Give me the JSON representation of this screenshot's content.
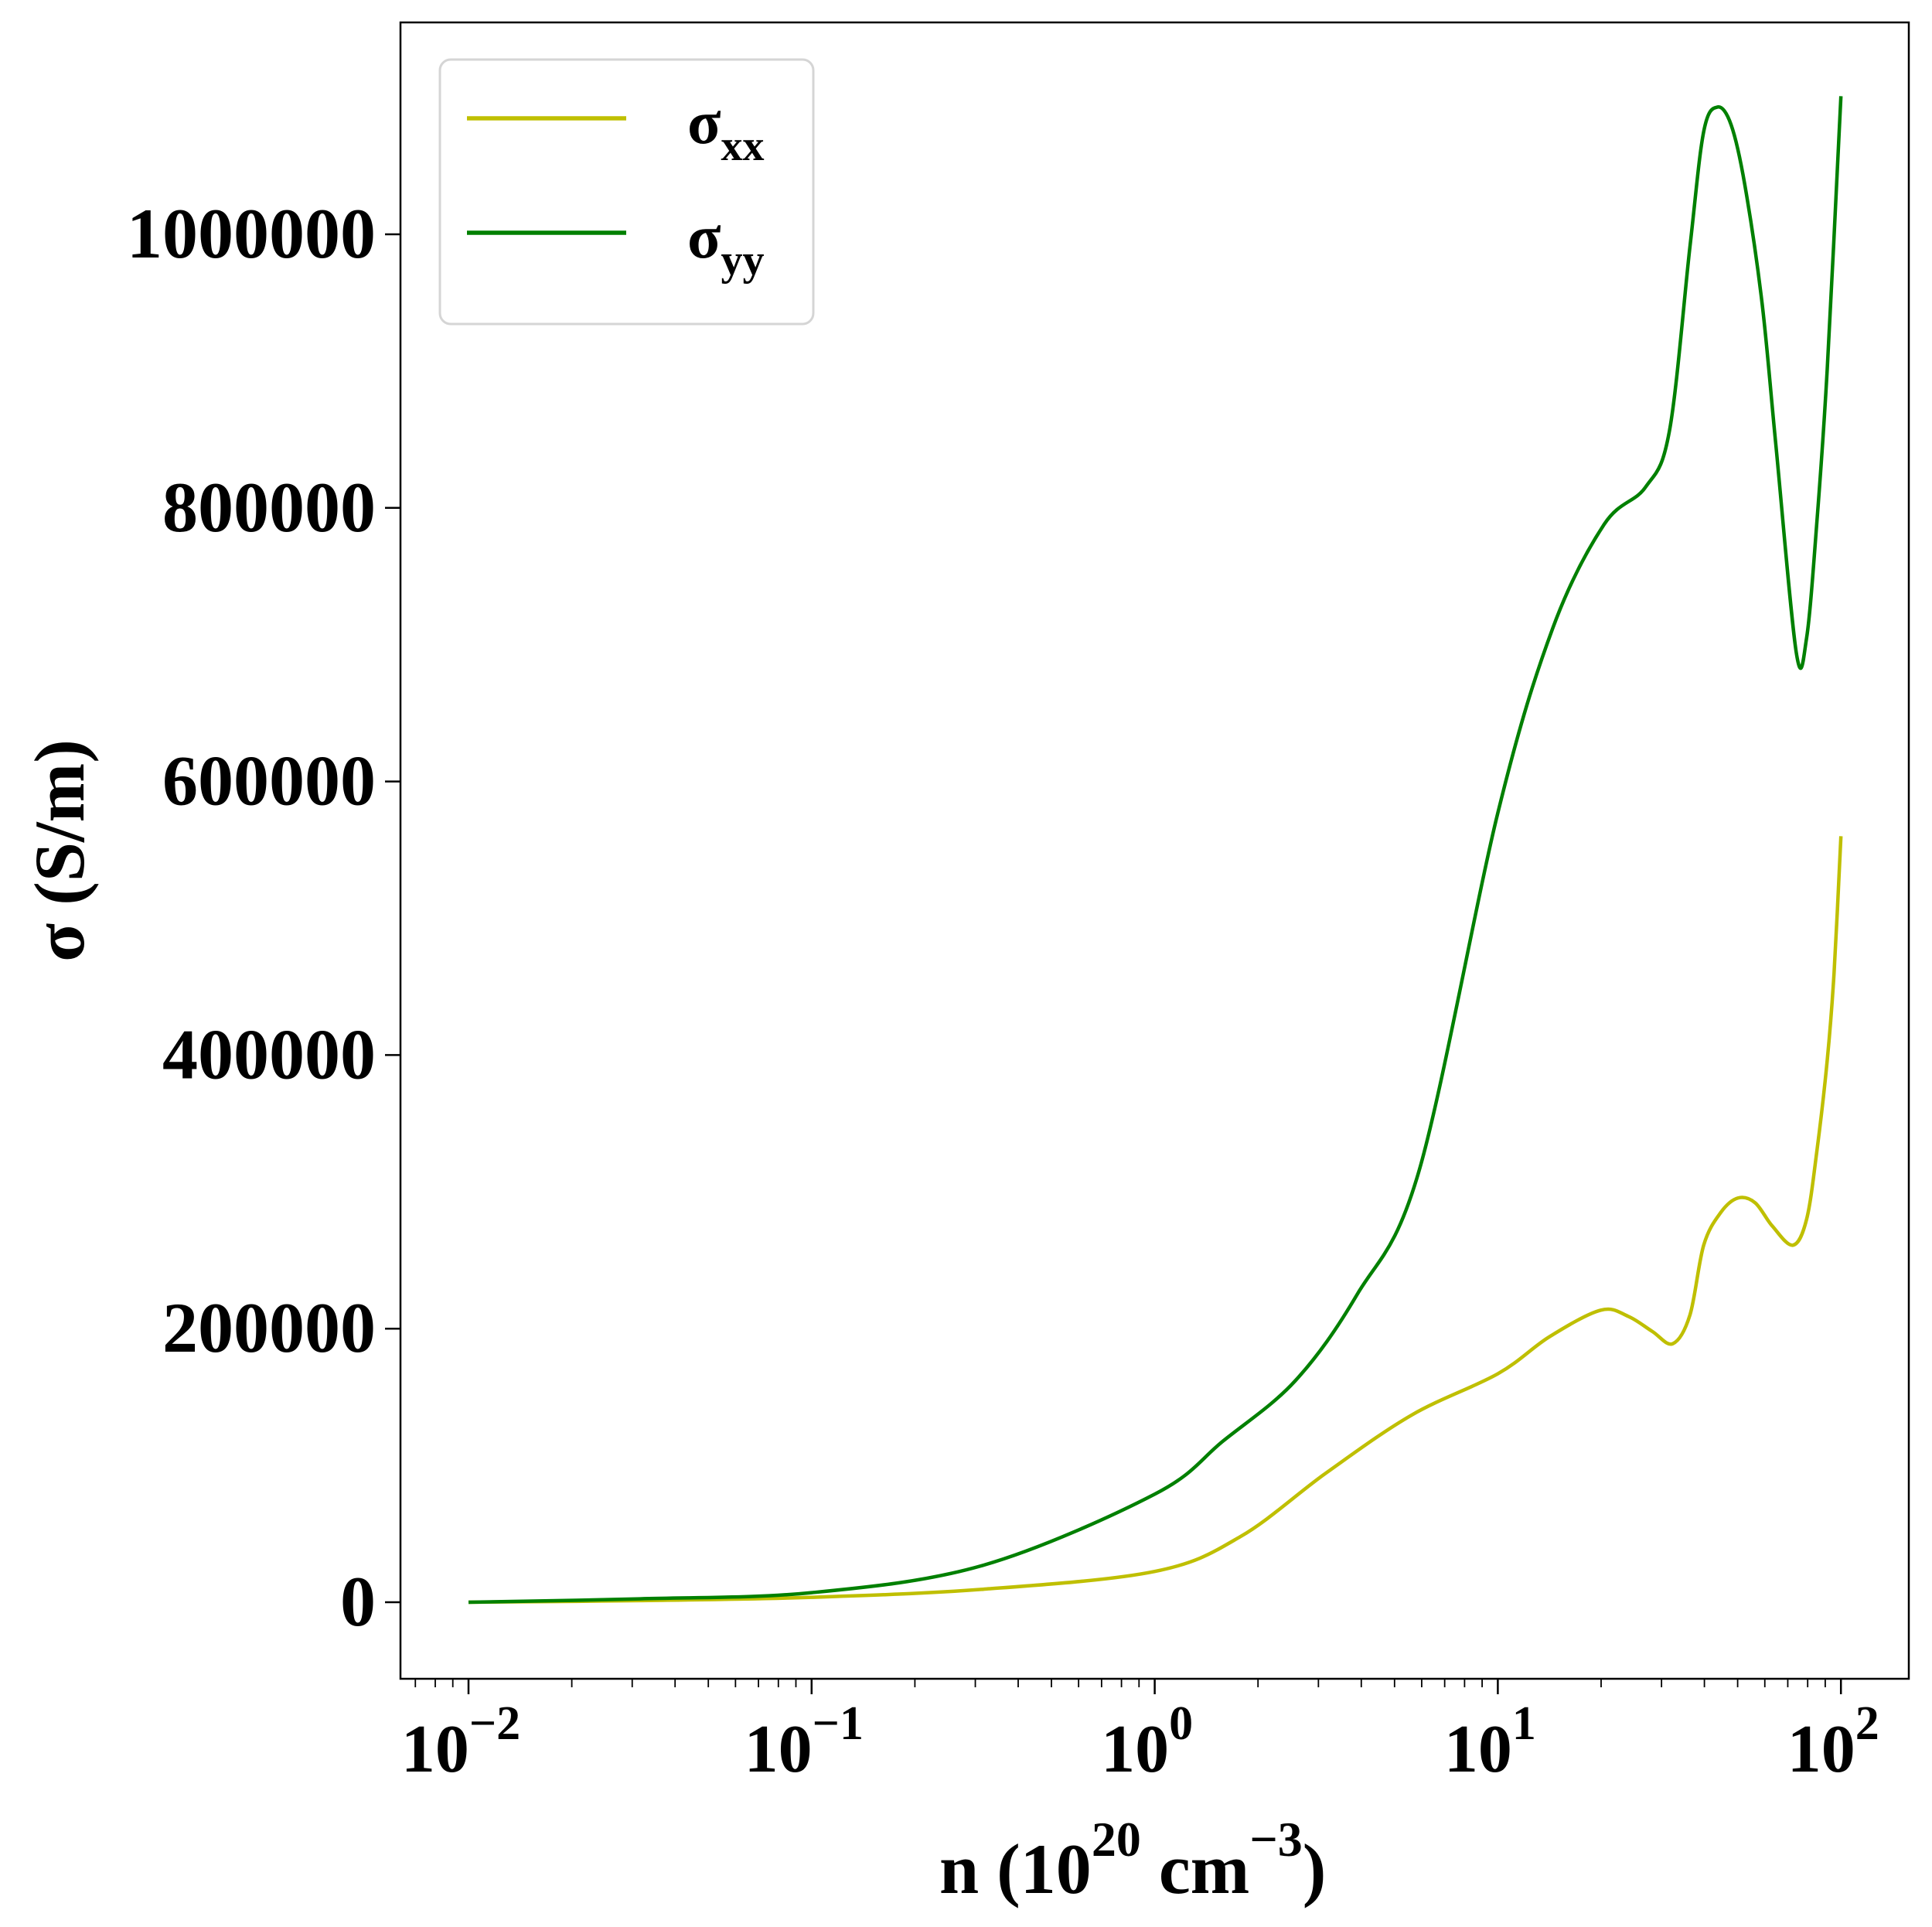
{
  "chart_data": {
    "type": "line",
    "title": "",
    "xlabel": {
      "main": "n (10",
      "sup1": "20",
      "mid": " cm",
      "sup2": "−3",
      "end": ")"
    },
    "ylabel": "σ (S/m)",
    "xscale": "log",
    "xlim_log10": [
      -2.2,
      2.2
    ],
    "ylim": [
      -56000,
      1155000
    ],
    "grid": false,
    "legend_position": "top-left",
    "x_ticks": [
      {
        "base": "10",
        "exp": "−2",
        "log10": -2
      },
      {
        "base": "10",
        "exp": "−1",
        "log10": -1
      },
      {
        "base": "10",
        "exp": "0",
        "log10": 0
      },
      {
        "base": "10",
        "exp": "1",
        "log10": 1
      },
      {
        "base": "10",
        "exp": "2",
        "log10": 2
      }
    ],
    "y_ticks": [
      {
        "label": "0",
        "value": 0
      },
      {
        "label": "200000",
        "value": 200000
      },
      {
        "label": "400000",
        "value": 400000
      },
      {
        "label": "600000",
        "value": 600000
      },
      {
        "label": "800000",
        "value": 800000
      },
      {
        "label": "1000000",
        "value": 1000000
      }
    ],
    "series": [
      {
        "name": "σ",
        "sub": "xx",
        "color": "#bfbf00",
        "log10_x": [
          -2,
          -1.5,
          -1,
          -0.5,
          0,
          0.25,
          0.5,
          0.75,
          1,
          1.15,
          1.3,
          1.38,
          1.45,
          1.51,
          1.56,
          1.6,
          1.65,
          1.7,
          1.75,
          1.8,
          1.86,
          1.9,
          1.93,
          1.96,
          1.98,
          2
        ],
        "y": [
          0,
          1200,
          3600,
          9500,
          22500,
          48000,
          94600,
          137000,
          167000,
          194000,
          213500,
          209000,
          198000,
          189000,
          210000,
          261000,
          285000,
          295500,
          292000,
          275000,
          261000,
          280000,
          330000,
          396000,
          460000,
          560000
        ]
      },
      {
        "name": "σ",
        "sub": "yy",
        "color": "#008000",
        "log10_x": [
          -2,
          -1.5,
          -1,
          -0.5,
          0,
          0.2,
          0.41,
          0.59,
          0.77,
          1,
          1.16,
          1.31,
          1.43,
          1.5,
          1.56,
          1.6,
          1.64,
          1.68,
          1.72,
          1.77,
          1.81,
          1.87,
          1.9,
          1.93,
          1.96,
          2
        ],
        "y": [
          0,
          2500,
          7000,
          27000,
          79000,
          118000,
          162000,
          225000,
          315000,
          577000,
          712000,
          788000,
          815000,
          856000,
          991000,
          1075000,
          1093000,
          1080000,
          1036000,
          950000,
          847000,
          694000,
          705000,
          790000,
          901000,
          1101000
        ]
      }
    ]
  }
}
